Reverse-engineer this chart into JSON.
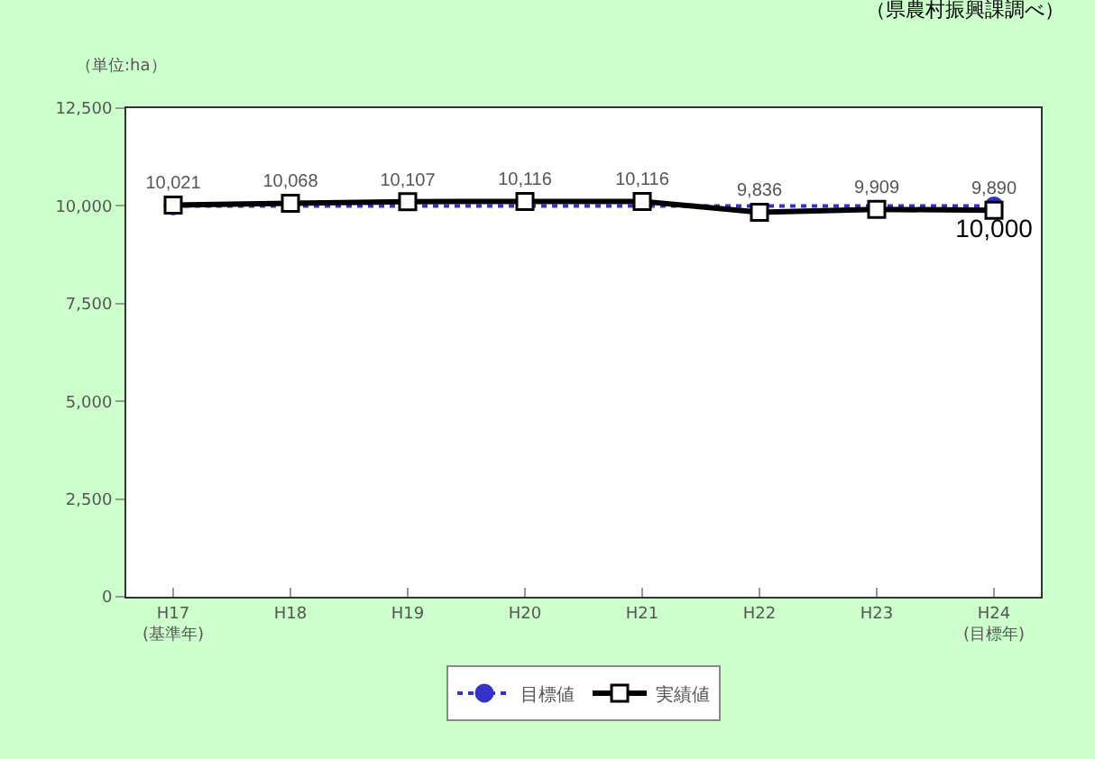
{
  "chart_data": {
    "type": "line",
    "categories": [
      "H17\n(基準年)",
      "H18",
      "H19",
      "H20",
      "H21",
      "H22",
      "H23",
      "H24\n(目標年)"
    ],
    "series": [
      {
        "name": "目標値",
        "color": "#3333cc",
        "line_style": "dotted",
        "marker": "circle",
        "values": [
          10000,
          null,
          null,
          null,
          null,
          null,
          null,
          10000
        ],
        "value_labels": [
          null,
          null,
          null,
          null,
          null,
          null,
          null,
          "10,000"
        ]
      },
      {
        "name": "実績値",
        "color": "#000000",
        "line_style": "solid",
        "marker": "square",
        "values": [
          10021,
          10068,
          10107,
          10116,
          10116,
          9836,
          9909,
          9890
        ],
        "value_labels": [
          "10,021",
          "10,068",
          "10,107",
          "10,116",
          "10,116",
          "9,836",
          "9,909",
          "9,890"
        ]
      }
    ],
    "ylim": [
      0,
      12500
    ],
    "yticks": [
      {
        "value": 0,
        "label": "0"
      },
      {
        "value": 2500,
        "label": "2,500"
      },
      {
        "value": 5000,
        "label": "5,000"
      },
      {
        "value": 7500,
        "label": "7,500"
      },
      {
        "value": 10000,
        "label": "10,000"
      },
      {
        "value": 12500,
        "label": "12,500"
      }
    ],
    "grid": false,
    "legend": "bottom",
    "annotations": [
      "（単位:ha）",
      "（県農村振興課調べ）"
    ]
  }
}
